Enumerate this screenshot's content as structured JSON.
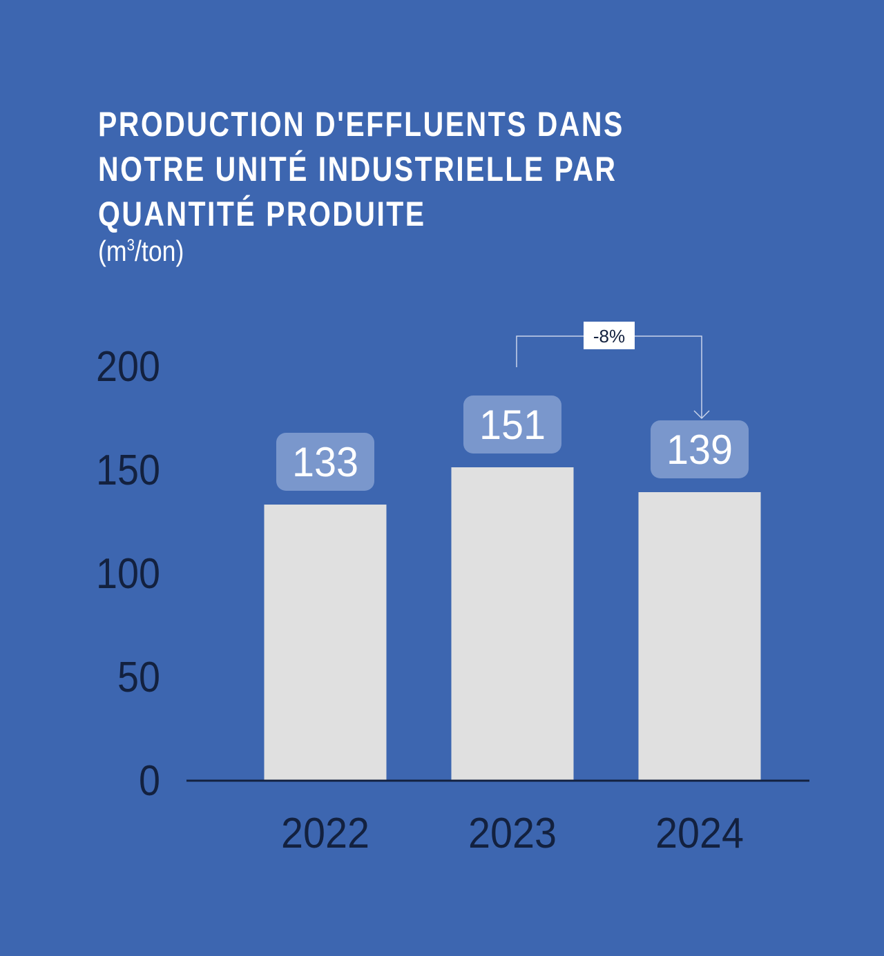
{
  "chart_data": {
    "type": "bar",
    "title_lines": [
      "PRODUCTION D'EFFLUENTS DANS",
      "NOTRE UNITÉ INDUSTRIELLE PAR",
      "QUANTITÉ PRODUITE"
    ],
    "unit_prefix": "(m",
    "unit_sup": "3",
    "unit_suffix": "/ton)",
    "categories": [
      "2022",
      "2023",
      "2024"
    ],
    "values": [
      133,
      151,
      139
    ],
    "value_labels": [
      "133",
      "151",
      "139"
    ],
    "yticks": [
      0,
      50,
      100,
      150,
      200
    ],
    "ytick_labels": [
      "0",
      "50",
      "100",
      "150",
      "200"
    ],
    "ylim": [
      0,
      200
    ],
    "grid": false,
    "annotation": {
      "from": "2023",
      "to": "2024",
      "label": "-8%"
    },
    "colors": {
      "background": "#3d66b0",
      "bar": "#e0e0e0",
      "value_box": "#7a97cc",
      "axis_text": "#13213f",
      "annotation_box": "#ffffff",
      "connector": "#c9d4ea"
    }
  }
}
